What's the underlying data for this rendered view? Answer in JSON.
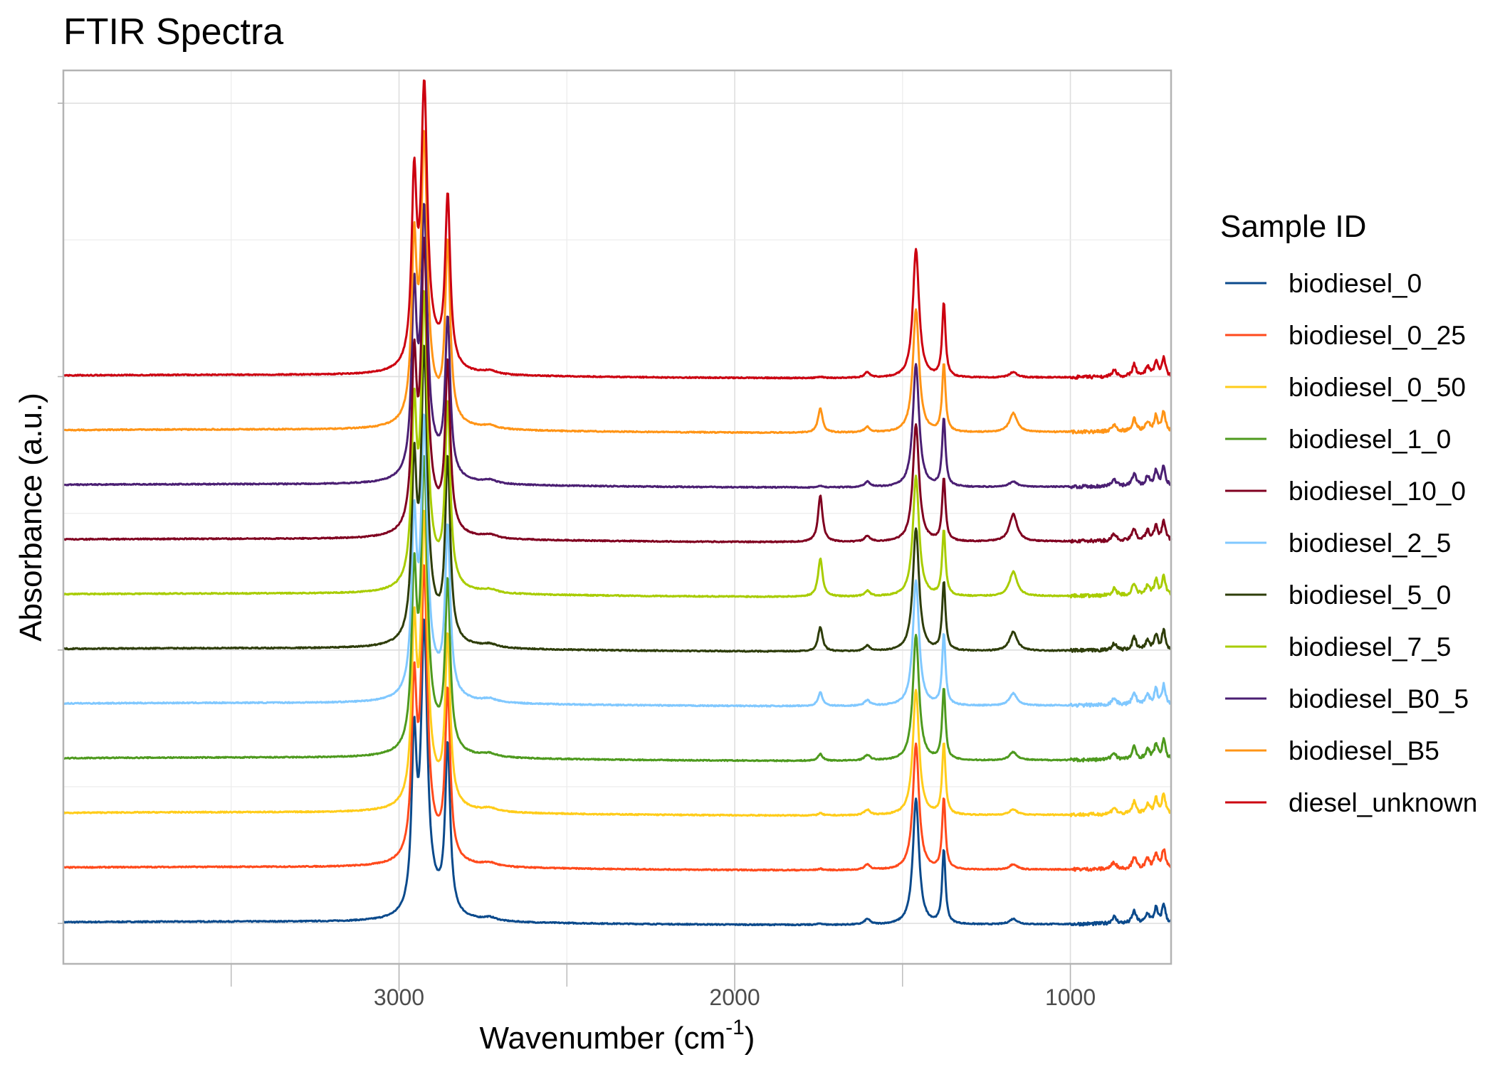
{
  "chart_data": {
    "type": "line",
    "title": "FTIR Spectra",
    "xlabel": "Wavenumber (cm",
    "xlabel_superscript": "-1",
    "xlabel_suffix": ")",
    "ylabel": "Absorbance (a.u.)",
    "xlim": [
      4000,
      700
    ],
    "x_reversed": true,
    "ylim": [
      -0.148,
      3.12
    ],
    "x_ticks": [
      3000,
      2000,
      1000
    ],
    "x_tick_labels": [
      "3000",
      "2000",
      "1000"
    ],
    "x_minor_ticks": [
      3500,
      2500,
      1500
    ],
    "y_ticks": [
      0,
      1,
      2,
      3
    ],
    "y_tick_labels": [
      "",
      "",
      "",
      ""
    ],
    "grid": true,
    "stacked_offset": 0.2,
    "legend": {
      "title": "Sample ID",
      "placement": "right"
    },
    "series": [
      {
        "name": "biodiesel_0",
        "color": "#0b4a8c",
        "offset": 0.0,
        "peaks": [
          [
            2955,
            0.6
          ],
          [
            2925,
            1.0
          ],
          [
            2855,
            0.6
          ],
          [
            1745,
            0.005
          ],
          [
            1460,
            0.46
          ],
          [
            1377,
            0.27
          ],
          [
            1170,
            0.02
          ]
        ]
      },
      {
        "name": "biodiesel_0_25",
        "color": "#ff4a1c",
        "offset": 0.2,
        "peaks": [
          [
            2955,
            0.6
          ],
          [
            2925,
            1.0
          ],
          [
            2855,
            0.6
          ],
          [
            1745,
            0.005
          ],
          [
            1460,
            0.46
          ],
          [
            1377,
            0.26
          ],
          [
            1170,
            0.02
          ]
        ]
      },
      {
        "name": "biodiesel_0_50",
        "color": "#ffcc1a",
        "offset": 0.4,
        "peaks": [
          [
            2955,
            0.6
          ],
          [
            2925,
            1.0
          ],
          [
            2855,
            0.6
          ],
          [
            1745,
            0.008
          ],
          [
            1460,
            0.46
          ],
          [
            1377,
            0.26
          ],
          [
            1170,
            0.02
          ]
        ]
      },
      {
        "name": "biodiesel_1_0",
        "color": "#4e9a1e",
        "offset": 0.6,
        "peaks": [
          [
            2955,
            0.6
          ],
          [
            2925,
            1.0
          ],
          [
            2855,
            0.6
          ],
          [
            1745,
            0.025
          ],
          [
            1460,
            0.46
          ],
          [
            1377,
            0.26
          ],
          [
            1170,
            0.03
          ]
        ]
      },
      {
        "name": "biodiesel_10_0",
        "color": "#800020",
        "offset": 1.4,
        "peaks": [
          [
            2955,
            0.58
          ],
          [
            2925,
            1.0
          ],
          [
            2855,
            0.6
          ],
          [
            1745,
            0.17
          ],
          [
            1460,
            0.43
          ],
          [
            1377,
            0.23
          ],
          [
            1170,
            0.1
          ]
        ]
      },
      {
        "name": "biodiesel_2_5",
        "color": "#80c8ff",
        "offset": 0.8,
        "peaks": [
          [
            2955,
            0.6
          ],
          [
            2925,
            0.95
          ],
          [
            2855,
            0.6
          ],
          [
            1745,
            0.05
          ],
          [
            1460,
            0.46
          ],
          [
            1377,
            0.26
          ],
          [
            1170,
            0.045
          ]
        ]
      },
      {
        "name": "biodiesel_5_0",
        "color": "#2e3d0a",
        "offset": 1.0,
        "peaks": [
          [
            2955,
            0.6
          ],
          [
            2925,
            1.0
          ],
          [
            2855,
            0.65
          ],
          [
            1745,
            0.09
          ],
          [
            1460,
            0.45
          ],
          [
            1377,
            0.25
          ],
          [
            1170,
            0.07
          ]
        ]
      },
      {
        "name": "biodiesel_7_5",
        "color": "#a8cc00",
        "offset": 1.2,
        "peaks": [
          [
            2955,
            0.6
          ],
          [
            2925,
            1.0
          ],
          [
            2855,
            0.65
          ],
          [
            1745,
            0.14
          ],
          [
            1460,
            0.44
          ],
          [
            1377,
            0.24
          ],
          [
            1170,
            0.09
          ]
        ]
      },
      {
        "name": "biodiesel_B0_5",
        "color": "#4b1f73",
        "offset": 1.6,
        "peaks": [
          [
            2955,
            0.63
          ],
          [
            2925,
            0.92
          ],
          [
            2855,
            0.56
          ],
          [
            1745,
            0.005
          ],
          [
            1460,
            0.45
          ],
          [
            1377,
            0.25
          ],
          [
            1170,
            0.02
          ]
        ]
      },
      {
        "name": "biodiesel_B5",
        "color": "#ff9416",
        "offset": 1.8,
        "peaks": [
          [
            2955,
            0.61
          ],
          [
            2925,
            0.985
          ],
          [
            2855,
            0.64
          ],
          [
            1745,
            0.09
          ],
          [
            1460,
            0.45
          ],
          [
            1377,
            0.25
          ],
          [
            1170,
            0.07
          ]
        ]
      },
      {
        "name": "diesel_unknown",
        "color": "#cc0010",
        "offset": 2.0,
        "peaks": [
          [
            2955,
            0.65
          ],
          [
            2925,
            0.97
          ],
          [
            2855,
            0.61
          ],
          [
            1745,
            0.005
          ],
          [
            1460,
            0.47
          ],
          [
            1377,
            0.27
          ],
          [
            1170,
            0.02
          ]
        ]
      }
    ],
    "draw_order": [
      "biodiesel_0",
      "biodiesel_0_25",
      "biodiesel_0_50",
      "biodiesel_1_0",
      "biodiesel_2_5",
      "biodiesel_5_0",
      "biodiesel_7_5",
      "biodiesel_10_0",
      "biodiesel_B0_5",
      "biodiesel_B5",
      "diesel_unknown"
    ]
  }
}
